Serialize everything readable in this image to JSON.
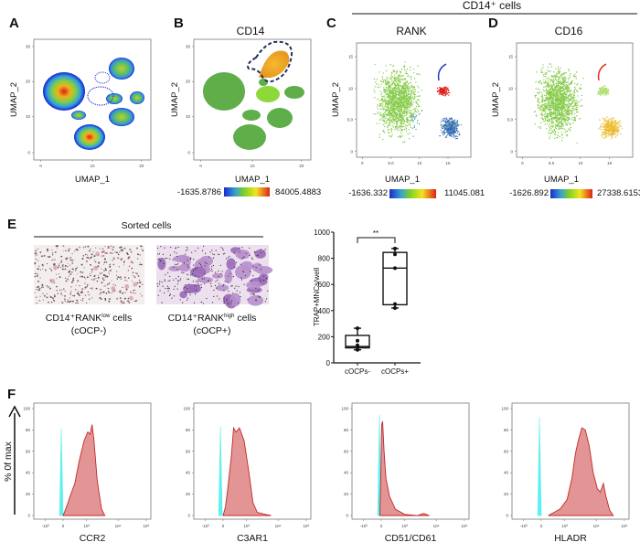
{
  "panels": {
    "A": {
      "letter": "A",
      "xlabel": "UMAP_1",
      "ylabel": "UMAP_2",
      "xticks": [
        "0",
        "10",
        "20"
      ],
      "yticks": [
        "0",
        "10",
        "20",
        "30"
      ]
    },
    "B": {
      "letter": "B",
      "title": "CD14",
      "xlabel": "UMAP_1",
      "ylabel": "UMAP_2",
      "xticks": [
        "0",
        "10",
        "20"
      ],
      "yticks": [
        "0",
        "10",
        "20",
        "30"
      ],
      "scale_min": "-1635.8786",
      "scale_max": "84005.4883"
    },
    "group_header": "CD14⁺ cells",
    "C": {
      "letter": "C",
      "title": "RANK",
      "xlabel": "UMAP_1",
      "ylabel": "UMAP_2",
      "xticks": [
        "0",
        "5.0",
        "10",
        "15"
      ],
      "yticks": [
        "0",
        "5.0",
        "10",
        "15"
      ],
      "scale_min": "-1636.332",
      "scale_max": "11045.081"
    },
    "D": {
      "letter": "D",
      "title": "CD16",
      "xlabel": "UMAP_1",
      "ylabel": "UMAP_2",
      "xticks": [
        "0",
        "5.0",
        "10",
        "15"
      ],
      "yticks": [
        "0",
        "5.0",
        "10",
        "15"
      ],
      "scale_min": "-1626.892",
      "scale_max": "27338.6153"
    },
    "E": {
      "letter": "E",
      "header": "Sorted cells",
      "images": [
        {
          "caption_main": "CD14⁺RANK",
          "caption_sup": "low",
          "caption_end": " cells",
          "caption_sub": "(cOCP-)"
        },
        {
          "caption_main": "CD14⁺RANK",
          "caption_sup": "high",
          "caption_end": " cells",
          "caption_sub": "(cOCP+)"
        }
      ]
    },
    "F": {
      "letter": "F",
      "ylabel": "% 0f max"
    }
  },
  "colors": {
    "heat_low": "#2032c8",
    "heat_mid": "#7ed321",
    "heat_high": "#e0201a",
    "cluster_green": "#5fae4a",
    "hist_fill": "#e08a8a",
    "hist_line": "#c0282a",
    "isotype": "#5ff0f0"
  },
  "chart_data": [
    {
      "type": "box",
      "ylabel": "TRAP+MNCs/well",
      "ylim": [
        0,
        1000
      ],
      "yticks": [
        "0",
        "200",
        "400",
        "600",
        "800",
        "1000"
      ],
      "categories": [
        "cOCPs-",
        "cOCPs+"
      ],
      "boxes": [
        {
          "min": 100,
          "q1": 115,
          "median": 125,
          "q3": 210,
          "max": 265,
          "points": [
            100,
            118,
            135,
            170,
            265
          ]
        },
        {
          "min": 420,
          "q1": 445,
          "median": 725,
          "q3": 845,
          "max": 875,
          "points": [
            420,
            450,
            725,
            830,
            875
          ]
        }
      ],
      "significance": "**"
    },
    {
      "type": "histogram",
      "xscale": "biexponential",
      "ylim": [
        0,
        100
      ],
      "yticks": [
        "0",
        "20",
        "40",
        "60",
        "80",
        "100"
      ],
      "xticks": [
        "-10³",
        "0",
        "10³",
        "10⁴",
        "10⁵"
      ],
      "panels": [
        {
          "marker": "CCR2",
          "isotype_peak": [
            -100,
            81
          ],
          "stained": [
            [
              0,
              0
            ],
            [
              150,
              8
            ],
            [
              300,
              18
            ],
            [
              500,
              30
            ],
            [
              700,
              52
            ],
            [
              900,
              70
            ],
            [
              1100,
              78
            ],
            [
              1300,
              76
            ],
            [
              1500,
              85
            ],
            [
              1700,
              72
            ],
            [
              2200,
              32
            ],
            [
              3000,
              6
            ],
            [
              3800,
              0
            ]
          ]
        },
        {
          "marker": "C3AR1",
          "isotype_peak": [
            -150,
            83
          ],
          "stained": [
            [
              0,
              0
            ],
            [
              100,
              8
            ],
            [
              200,
              25
            ],
            [
              350,
              55
            ],
            [
              450,
              82
            ],
            [
              550,
              78
            ],
            [
              700,
              82
            ],
            [
              900,
              70
            ],
            [
              1200,
              40
            ],
            [
              1600,
              12
            ],
            [
              2200,
              3
            ],
            [
              4000,
              1
            ],
            [
              6000,
              0
            ]
          ]
        },
        {
          "marker": "CD51/CD61",
          "isotype_peak": [
            -100,
            94
          ],
          "stained": [
            [
              -80,
              0
            ],
            [
              -20,
              40
            ],
            [
              20,
              85
            ],
            [
              60,
              88
            ],
            [
              120,
              60
            ],
            [
              200,
              35
            ],
            [
              350,
              18
            ],
            [
              600,
              6
            ],
            [
              1000,
              1
            ],
            [
              2500,
              0
            ],
            [
              4000,
              2
            ],
            [
              6000,
              0
            ]
          ]
        },
        {
          "marker": "HLADR",
          "isotype_peak": [
            -100,
            92
          ],
          "stained": [
            [
              300,
              0
            ],
            [
              800,
              6
            ],
            [
              1200,
              15
            ],
            [
              1700,
              35
            ],
            [
              2200,
              58
            ],
            [
              2700,
              70
            ],
            [
              3500,
              82
            ],
            [
              4500,
              80
            ],
            [
              6000,
              65
            ],
            [
              8000,
              40
            ],
            [
              11000,
              25
            ],
            [
              14000,
              22
            ],
            [
              18000,
              30
            ],
            [
              22000,
              18
            ],
            [
              30000,
              5
            ],
            [
              40000,
              0
            ]
          ]
        }
      ]
    }
  ]
}
